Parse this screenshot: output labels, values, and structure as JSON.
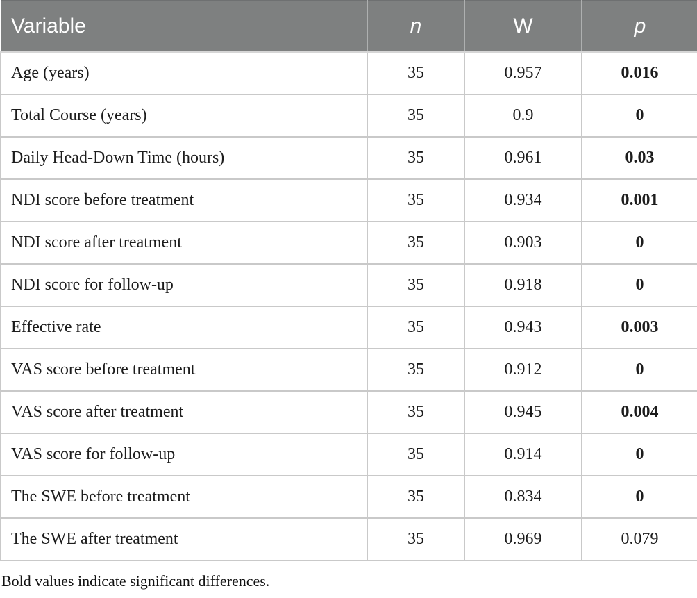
{
  "colors": {
    "header_bg": "#7e8080",
    "header_text": "#ffffff",
    "body_text": "#1c1c1c",
    "grid_line": "#c9c9c9",
    "bold_significance": "bold"
  },
  "table": {
    "columns": [
      {
        "key": "variable",
        "label": "Variable",
        "italic": false,
        "align": "left"
      },
      {
        "key": "n",
        "label": "n",
        "italic": true,
        "align": "center"
      },
      {
        "key": "w",
        "label": "W",
        "italic": false,
        "align": "center"
      },
      {
        "key": "p",
        "label": "p",
        "italic": true,
        "align": "center"
      }
    ],
    "rows": [
      {
        "variable": "Age (years)",
        "n": "35",
        "w": "0.957",
        "p": "0.016",
        "p_bold": true
      },
      {
        "variable": "Total Course (years)",
        "n": "35",
        "w": "0.9",
        "p": "0",
        "p_bold": true
      },
      {
        "variable": "Daily Head-Down Time (hours)",
        "n": "35",
        "w": "0.961",
        "p": "0.03",
        "p_bold": true
      },
      {
        "variable": "NDI score before treatment",
        "n": "35",
        "w": "0.934",
        "p": "0.001",
        "p_bold": true
      },
      {
        "variable": "NDI score after treatment",
        "n": "35",
        "w": "0.903",
        "p": "0",
        "p_bold": true
      },
      {
        "variable": "NDI score for follow-up",
        "n": "35",
        "w": "0.918",
        "p": "0",
        "p_bold": true
      },
      {
        "variable": "Effective rate",
        "n": "35",
        "w": "0.943",
        "p": "0.003",
        "p_bold": true
      },
      {
        "variable": "VAS score before treatment",
        "n": "35",
        "w": "0.912",
        "p": "0",
        "p_bold": true
      },
      {
        "variable": "VAS score after treatment",
        "n": "35",
        "w": "0.945",
        "p": "0.004",
        "p_bold": true
      },
      {
        "variable": "VAS score for follow-up",
        "n": "35",
        "w": "0.914",
        "p": "0",
        "p_bold": true
      },
      {
        "variable": "The SWE before treatment",
        "n": "35",
        "w": "0.834",
        "p": "0",
        "p_bold": true
      },
      {
        "variable": "The SWE after treatment",
        "n": "35",
        "w": "0.969",
        "p": "0.079",
        "p_bold": false
      }
    ]
  },
  "footnote": "Bold values indicate significant differences."
}
